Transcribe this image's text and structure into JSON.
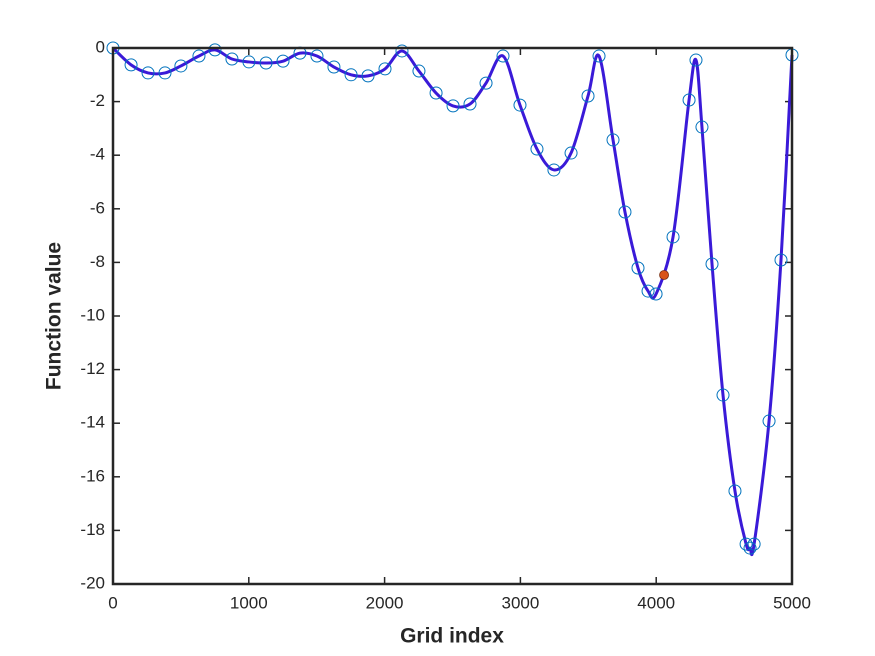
{
  "chart_data": {
    "type": "line",
    "xlabel": "Grid index",
    "ylabel": "Function value",
    "xlim": [
      0,
      5000
    ],
    "xticks": [
      0,
      1000,
      2000,
      3000,
      4000,
      5000
    ],
    "ylim": [
      -20,
      0
    ],
    "yticks": [
      0,
      -2,
      -4,
      -6,
      -8,
      -10,
      -12,
      -14,
      -16,
      -18,
      -20
    ],
    "series": [
      {
        "color": "#3a1ad8",
        "marker": "none",
        "x": [
          0,
          133,
          258,
          383,
          500,
          633,
          751,
          876,
          1001,
          1127,
          1252,
          1377,
          1502,
          1627,
          1753,
          1878,
          2003,
          2128,
          2253,
          2379,
          2504,
          2629,
          2747,
          2872,
          2997,
          3122,
          3247,
          3373,
          3498,
          3579,
          3682,
          3770,
          3866,
          3940,
          3999,
          4124,
          4242,
          4293,
          4337,
          4411,
          4492,
          4580,
          4662,
          4691,
          4721,
          4831,
          4919,
          5000
        ],
        "values": [
          0,
          -0.63,
          -0.93,
          -0.93,
          -0.67,
          -0.3,
          -0.07,
          -0.41,
          -0.52,
          -0.56,
          -0.49,
          -0.19,
          -0.3,
          -0.71,
          -1.0,
          -1.04,
          -0.78,
          -0.11,
          -0.86,
          -1.68,
          -2.16,
          -2.09,
          -1.31,
          -0.3,
          -2.13,
          -3.77,
          -4.55,
          -3.92,
          -1.79,
          -0.3,
          -3.43,
          -6.12,
          -8.21,
          -9.07,
          -9.18,
          -7.05,
          -1.94,
          -0.45,
          -2.95,
          -8.06,
          -12.95,
          -16.53,
          -18.51,
          -18.66,
          -18.51,
          -13.92,
          -7.91,
          -0.26
        ]
      },
      {
        "color": "#0072bd",
        "marker": "circle",
        "x": [
          0,
          133,
          258,
          383,
          500,
          633,
          751,
          876,
          1001,
          1127,
          1252,
          1377,
          1502,
          1627,
          1753,
          1878,
          2003,
          2128,
          2253,
          2379,
          2504,
          2629,
          2747,
          2872,
          2997,
          3122,
          3247,
          3373,
          3498,
          3579,
          3682,
          3770,
          3866,
          3940,
          3999,
          4124,
          4242,
          4293,
          4337,
          4411,
          4492,
          4580,
          4662,
          4691,
          4721,
          4831,
          4919,
          5000
        ],
        "values": [
          0,
          -0.63,
          -0.93,
          -0.93,
          -0.67,
          -0.3,
          -0.07,
          -0.41,
          -0.52,
          -0.56,
          -0.49,
          -0.19,
          -0.3,
          -0.71,
          -1.0,
          -1.04,
          -0.78,
          -0.11,
          -0.86,
          -1.68,
          -2.16,
          -2.09,
          -1.31,
          -0.3,
          -2.13,
          -3.77,
          -4.55,
          -3.92,
          -1.79,
          -0.3,
          -3.43,
          -6.12,
          -8.21,
          -9.07,
          -9.18,
          -7.05,
          -1.94,
          -0.45,
          -2.95,
          -8.06,
          -12.95,
          -16.53,
          -18.51,
          -18.66,
          -18.51,
          -13.92,
          -7.91,
          -0.26
        ]
      },
      {
        "color": "#d95319",
        "marker": "filled-circle",
        "x": [
          4058
        ],
        "values": [
          -8.47
        ]
      }
    ]
  }
}
